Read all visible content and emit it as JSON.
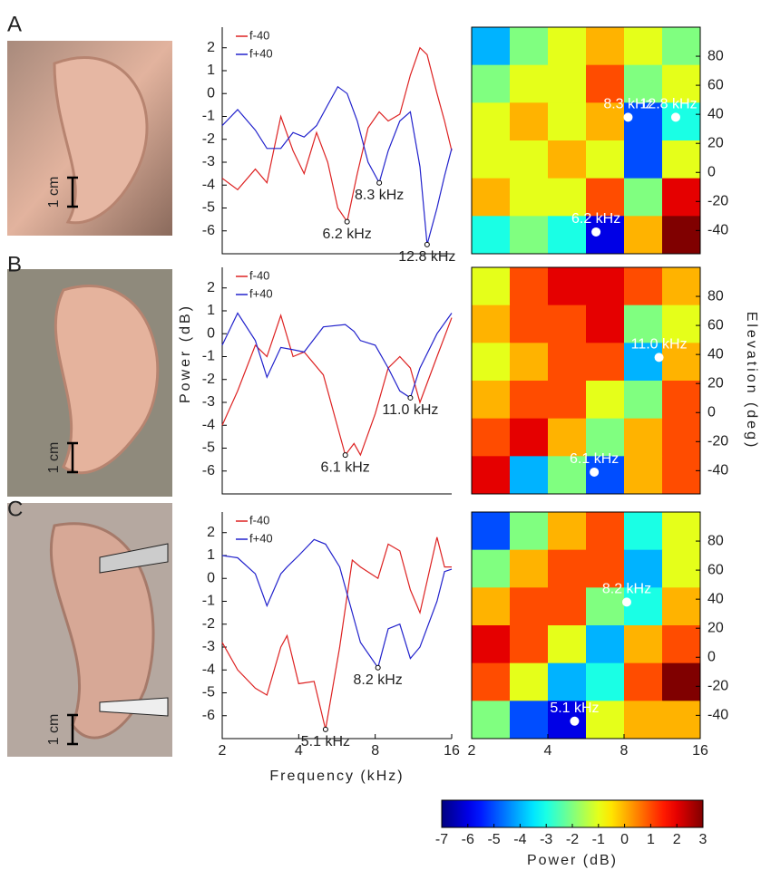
{
  "panels": [
    "A",
    "B",
    "C"
  ],
  "scale_bars": [
    "1 cm",
    "1 cm",
    "1 cm"
  ],
  "chart_data": [
    {
      "type": "line",
      "xscale": "log",
      "xlim": [
        2,
        16
      ],
      "ylim": [
        -7,
        2.9
      ],
      "yticks": [
        2,
        1,
        0,
        -1,
        -2,
        -3,
        -4,
        -5,
        -6
      ],
      "legend": "upper left",
      "x": [
        2,
        2.3,
        2.7,
        3.0,
        3.4,
        3.8,
        4.2,
        4.7,
        5.2,
        5.7,
        6.2,
        6.8,
        7.5,
        8.3,
        9,
        10,
        11,
        12,
        12.8,
        14,
        15,
        16
      ],
      "series": [
        {
          "name": "f-40",
          "color": "#dd2222",
          "values": [
            -3.7,
            -4.2,
            -3.3,
            -3.9,
            -1.0,
            -2.5,
            -3.5,
            -1.7,
            -3.0,
            -5.0,
            -5.6,
            -3.5,
            -1.5,
            -0.8,
            -1.2,
            -0.9,
            0.8,
            2.0,
            1.7,
            0,
            -1.2,
            -2.5
          ]
        },
        {
          "name": "f+40",
          "color": "#2222cc",
          "values": [
            -1.4,
            -0.7,
            -1.6,
            -2.4,
            -2.4,
            -1.7,
            -1.9,
            -1.4,
            -0.5,
            0.3,
            0.0,
            -1.2,
            -3.0,
            -3.9,
            -2.5,
            -1.2,
            -0.8,
            -3.2,
            -6.6,
            -5.0,
            -3.6,
            -2.4
          ]
        }
      ],
      "annotations": [
        {
          "text": "6.2 kHz",
          "x": 6.2,
          "y": -5.6
        },
        {
          "text": "8.3 kHz",
          "x": 8.3,
          "y": -3.9
        },
        {
          "text": "12.8 kHz",
          "x": 12.8,
          "y": -6.6
        }
      ]
    },
    {
      "type": "heatmap",
      "xscale": "log",
      "xlim": [
        2,
        16
      ],
      "ylim": [
        -56,
        100
      ],
      "yticks": [
        80,
        60,
        40,
        20,
        0,
        -20,
        -40
      ],
      "clim": [
        -7,
        3
      ],
      "x": [
        2.38,
        3.36,
        4.76,
        6.73,
        9.51,
        13.45
      ],
      "y": [
        87,
        61,
        35,
        9,
        -17,
        -43
      ],
      "z": [
        [
          -4,
          -2,
          -1,
          0,
          -1,
          -2
        ],
        [
          -2,
          -1,
          -1,
          1,
          -2,
          -1
        ],
        [
          -1,
          0,
          -1,
          0,
          -5,
          -3
        ],
        [
          -1,
          -1,
          0,
          -1,
          -5,
          -1
        ],
        [
          0,
          -1,
          -1,
          1,
          -2,
          2
        ],
        [
          -3,
          -2,
          -3,
          -6,
          0,
          3
        ]
      ],
      "annotations": [
        {
          "text": "8.3 kHz",
          "x": 8.3,
          "y": 38
        },
        {
          "text": "12.8 kHz",
          "x": 12.8,
          "y": 38
        },
        {
          "text": "6.2 kHz",
          "x": 6.2,
          "y": -41
        }
      ]
    },
    {
      "type": "line",
      "xscale": "log",
      "xlim": [
        2,
        16
      ],
      "ylim": [
        -7,
        2.9
      ],
      "yticks": [
        2,
        1,
        0,
        -1,
        -2,
        -3,
        -4,
        -5,
        -6
      ],
      "legend": "upper left",
      "ylabel": "Power (dB)",
      "x": [
        2,
        2.3,
        2.7,
        3.0,
        3.4,
        3.8,
        4.2,
        5.0,
        6.1,
        6.6,
        7,
        8,
        9,
        10,
        11,
        12,
        14,
        16
      ],
      "series": [
        {
          "name": "f-40",
          "color": "#dd2222",
          "values": [
            -4.0,
            -2.5,
            -0.5,
            -1.0,
            0.8,
            -1.0,
            -0.8,
            -1.8,
            -5.3,
            -4.8,
            -5.3,
            -3.5,
            -1.5,
            -1.0,
            -1.5,
            -3.0,
            -1.0,
            0.7
          ]
        },
        {
          "name": "f+40",
          "color": "#2222cc",
          "values": [
            -0.5,
            0.9,
            -0.3,
            -1.9,
            -0.6,
            -0.7,
            -0.8,
            0.3,
            0.4,
            0.1,
            -0.3,
            -0.5,
            -1.5,
            -2.5,
            -2.8,
            -1.5,
            0,
            0.9
          ]
        }
      ],
      "annotations": [
        {
          "text": "6.1 kHz",
          "x": 6.1,
          "y": -5.3
        },
        {
          "text": "11.0 kHz",
          "x": 11.0,
          "y": -2.8
        }
      ]
    },
    {
      "type": "heatmap",
      "xscale": "log",
      "xlim": [
        2,
        16
      ],
      "ylim": [
        -56,
        100
      ],
      "yticks": [
        80,
        60,
        40,
        20,
        0,
        -20,
        -40
      ],
      "clim": [
        -7,
        3
      ],
      "ylabel": "Elevation (deg)",
      "x": [
        2.38,
        3.36,
        4.76,
        6.73,
        9.51,
        13.45
      ],
      "y": [
        87,
        61,
        35,
        9,
        -17,
        -43
      ],
      "z": [
        [
          -1,
          1,
          2,
          2,
          1,
          0
        ],
        [
          0,
          1,
          1,
          2,
          -2,
          -1
        ],
        [
          -1,
          0,
          1,
          1,
          -4,
          0
        ],
        [
          0,
          1,
          1,
          -1,
          -2,
          1
        ],
        [
          1,
          2,
          0,
          -2,
          0,
          1
        ],
        [
          2,
          -4,
          -2,
          -5,
          0,
          1
        ]
      ],
      "annotations": [
        {
          "text": "11.0 kHz",
          "x": 11.0,
          "y": 38
        },
        {
          "text": "6.1 kHz",
          "x": 6.1,
          "y": -41
        }
      ]
    },
    {
      "type": "line",
      "xscale": "log",
      "xlim": [
        2,
        16
      ],
      "ylim": [
        -7,
        2.9
      ],
      "yticks": [
        2,
        1,
        0,
        -1,
        -2,
        -3,
        -4,
        -5,
        -6
      ],
      "xticks": [
        2,
        4,
        8,
        16
      ],
      "legend": "upper left",
      "xlabel": "Frequency (kHz)",
      "x": [
        2,
        2.3,
        2.7,
        3.0,
        3.4,
        3.6,
        4,
        4.6,
        5.1,
        5.8,
        6.5,
        7,
        8.2,
        9,
        10,
        11,
        12,
        14,
        15,
        16
      ],
      "series": [
        {
          "name": "f-40",
          "color": "#dd2222",
          "values": [
            -2.8,
            -4.0,
            -4.8,
            -5.1,
            -3.0,
            -2.5,
            -4.6,
            -4.5,
            -6.6,
            -3.0,
            0.8,
            0.5,
            0.0,
            1.5,
            1.2,
            -0.5,
            -1.5,
            1.8,
            0.5,
            0.5
          ]
        },
        {
          "name": "f+40",
          "color": "#2222cc",
          "values": [
            1.0,
            0.9,
            0.2,
            -1.2,
            0.2,
            0.5,
            1.0,
            1.7,
            1.5,
            0.5,
            -1.5,
            -2.8,
            -3.9,
            -2.2,
            -2.0,
            -3.5,
            -3.0,
            -1.0,
            0.3,
            0.4
          ]
        }
      ],
      "annotations": [
        {
          "text": "8.2 kHz",
          "x": 8.2,
          "y": -3.9
        },
        {
          "text": "5.1 kHz",
          "x": 5.1,
          "y": -6.6
        }
      ]
    },
    {
      "type": "heatmap",
      "xscale": "log",
      "xlim": [
        2,
        16
      ],
      "ylim": [
        -56,
        100
      ],
      "yticks": [
        80,
        60,
        40,
        20,
        0,
        -20,
        -40
      ],
      "xticks": [
        2,
        4,
        8,
        16
      ],
      "clim": [
        -7,
        3
      ],
      "x": [
        2.38,
        3.36,
        4.76,
        6.73,
        9.51,
        13.45
      ],
      "y": [
        87,
        61,
        35,
        9,
        -17,
        -43
      ],
      "z": [
        [
          -5,
          -2,
          0,
          1,
          -3,
          -1
        ],
        [
          -2,
          0,
          1,
          1,
          -4,
          -1
        ],
        [
          0,
          1,
          1,
          -2,
          -3,
          0
        ],
        [
          2,
          1,
          -1,
          -4,
          0,
          1
        ],
        [
          1,
          -1,
          -4,
          -3,
          1,
          3
        ],
        [
          -2,
          -5,
          -6,
          -1,
          0,
          0
        ]
      ],
      "annotations": [
        {
          "text": "8.2 kHz",
          "x": 8.2,
          "y": 38
        },
        {
          "text": "5.1 kHz",
          "x": 5.1,
          "y": -44
        }
      ]
    },
    {
      "type": "colorbar",
      "clim": [
        -7,
        3
      ],
      "ticks": [
        -7,
        -6,
        -5,
        -4,
        -3,
        -2,
        -1,
        0,
        1,
        2,
        3
      ],
      "label": "Power (dB)"
    }
  ]
}
